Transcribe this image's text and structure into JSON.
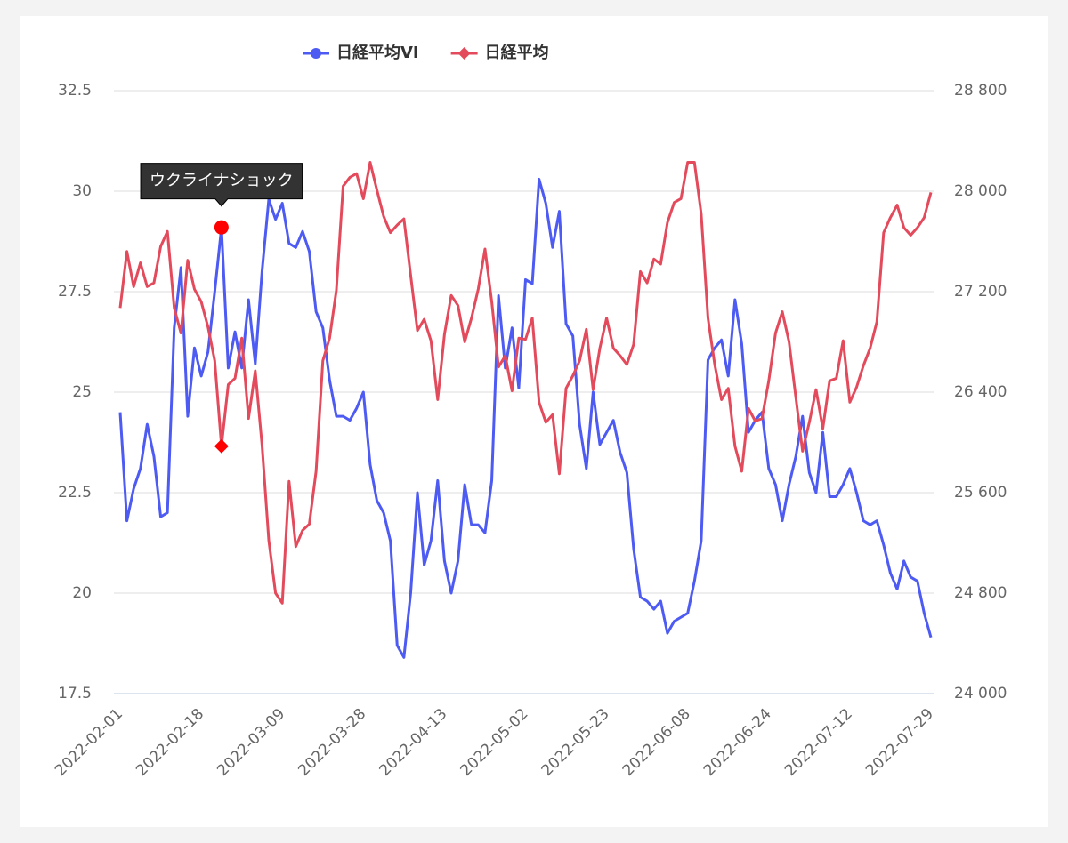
{
  "chart_data": {
    "type": "line",
    "categories": [
      "2022-02-01",
      null,
      null,
      null,
      null,
      null,
      null,
      null,
      null,
      null,
      null,
      null,
      "2022-02-18",
      null,
      null,
      null,
      null,
      null,
      null,
      null,
      null,
      null,
      null,
      null,
      "2022-03-09",
      null,
      null,
      null,
      null,
      null,
      null,
      null,
      null,
      null,
      null,
      null,
      "2022-03-28",
      null,
      null,
      null,
      null,
      null,
      null,
      null,
      null,
      null,
      null,
      null,
      "2022-04-13",
      null,
      null,
      null,
      null,
      null,
      null,
      null,
      null,
      null,
      null,
      null,
      "2022-05-02",
      null,
      null,
      null,
      null,
      null,
      null,
      null,
      null,
      null,
      null,
      null,
      "2022-05-23",
      null,
      null,
      null,
      null,
      null,
      null,
      null,
      null,
      null,
      null,
      null,
      "2022-06-08",
      null,
      null,
      null,
      null,
      null,
      null,
      null,
      null,
      null,
      null,
      null,
      "2022-06-24",
      null,
      null,
      null,
      null,
      null,
      null,
      null,
      null,
      null,
      null,
      null,
      "2022-07-12",
      null,
      null,
      null,
      null,
      null,
      null,
      null,
      null,
      null,
      null,
      null,
      "2022-07-29"
    ],
    "series": [
      {
        "name": "日経平均VI",
        "color": "#4d5bf3",
        "axis": "y",
        "marker": "circle",
        "values": [
          24.5,
          21.8,
          22.6,
          23.1,
          24.2,
          23.4,
          21.9,
          22.0,
          26.6,
          28.1,
          24.4,
          26.1,
          25.4,
          26.0,
          27.5,
          29.1,
          25.6,
          26.5,
          25.6,
          27.3,
          25.7,
          28.0,
          29.8,
          29.3,
          29.7,
          28.7,
          28.6,
          29.0,
          28.5,
          27.0,
          26.6,
          25.3,
          24.4,
          24.4,
          24.3,
          24.6,
          25.0,
          23.2,
          22.3,
          22.0,
          21.3,
          18.7,
          18.4,
          20.0,
          22.5,
          20.7,
          21.3,
          22.8,
          20.8,
          20.0,
          20.8,
          22.7,
          21.7,
          21.7,
          21.5,
          22.8,
          27.4,
          25.6,
          26.6,
          25.1,
          27.8,
          27.7,
          30.3,
          29.7,
          28.6,
          29.5,
          26.7,
          26.4,
          24.2,
          23.1,
          25.0,
          23.7,
          24.0,
          24.3,
          23.5,
          23.0,
          21.1,
          19.9,
          19.8,
          19.6,
          19.8,
          19.0,
          19.3,
          19.4,
          19.5,
          20.3,
          21.3,
          25.8,
          26.1,
          26.3,
          25.4,
          27.3,
          26.2,
          24.0,
          24.3,
          24.5,
          23.1,
          22.7,
          21.8,
          22.7,
          23.4,
          24.4,
          23.0,
          22.5,
          24.0,
          22.4,
          22.4,
          22.7,
          23.1,
          22.5,
          21.8,
          21.7,
          21.8,
          21.2,
          20.5,
          20.1,
          20.8,
          20.4,
          20.3,
          19.5,
          18.9
        ]
      },
      {
        "name": "日経平均",
        "color": "#e34b5c",
        "axis": "y2",
        "marker": "diamond",
        "values": [
          27070,
          27520,
          27240,
          27430,
          27240,
          27270,
          27560,
          27680,
          27070,
          26870,
          27450,
          27220,
          27120,
          26920,
          26650,
          25970,
          26460,
          26510,
          26830,
          26190,
          26570,
          25980,
          25220,
          24800,
          24720,
          25690,
          25170,
          25300,
          25350,
          25770,
          26650,
          26830,
          27210,
          28040,
          28110,
          28140,
          27940,
          28230,
          28010,
          27800,
          27670,
          27730,
          27780,
          27330,
          26890,
          26980,
          26810,
          26340,
          26860,
          27170,
          27090,
          26800,
          26990,
          27220,
          27540,
          27120,
          26600,
          26690,
          26410,
          26830,
          26820,
          26990,
          26320,
          26160,
          26220,
          25750,
          26430,
          26530,
          26650,
          26900,
          26420,
          26750,
          26990,
          26750,
          26690,
          26620,
          26780,
          27360,
          27270,
          27460,
          27420,
          27750,
          27910,
          27940,
          28230,
          28230,
          27820,
          26990,
          26620,
          26340,
          26430,
          25970,
          25770,
          26270,
          26170,
          26190,
          26490,
          26870,
          27040,
          26800,
          26360,
          25930,
          26160,
          26420,
          26110,
          26490,
          26510,
          26810,
          26320,
          26440,
          26610,
          26750,
          26960,
          27670,
          27790,
          27890,
          27710,
          27650,
          27710,
          27790,
          27990
        ]
      }
    ],
    "ylim": [
      17.5,
      32.5
    ],
    "yticks": [
      17.5,
      20,
      22.5,
      25,
      27.5,
      30,
      32.5
    ],
    "y2lim": [
      24000,
      28800
    ],
    "y2ticks": [
      {
        "value": 24000,
        "label": "24 000"
      },
      {
        "value": 24800,
        "label": "24 800"
      },
      {
        "value": 25600,
        "label": "25 600"
      },
      {
        "value": 26400,
        "label": "26 400"
      },
      {
        "value": 27200,
        "label": "27 200"
      },
      {
        "value": 28000,
        "label": "28 000"
      },
      {
        "value": 28800,
        "label": "28 800"
      }
    ],
    "grid": true,
    "legend": "top",
    "annotations": [
      {
        "text": "ウクライナショック",
        "index": 15,
        "color": "#ff0000"
      }
    ]
  }
}
